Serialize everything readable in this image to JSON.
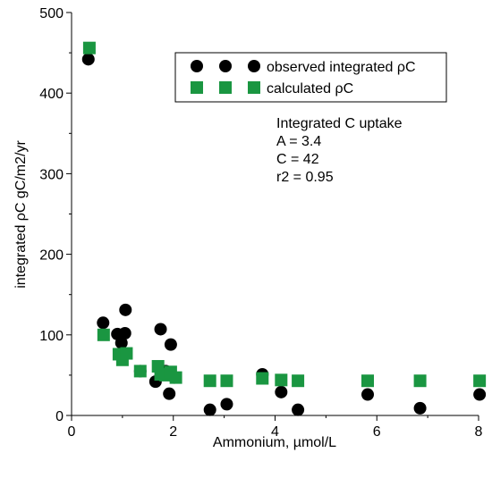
{
  "chart_data": {
    "type": "scatter",
    "title": "",
    "xlabel": "Ammonium, µmol/L",
    "ylabel": "integrated ρC gC/m2/yr",
    "xlim": [
      0,
      8
    ],
    "ylim": [
      0,
      500
    ],
    "xticks": [
      "0",
      "2",
      "4",
      "6",
      "8"
    ],
    "yticks": [
      "0",
      "100",
      "200",
      "300",
      "400",
      "500"
    ],
    "grid": false,
    "legend_position": "top-right",
    "series": [
      {
        "name": "observed integrated ρC",
        "marker": "circle",
        "color": "#000000",
        "points": [
          {
            "x": 0.33,
            "y": 442
          },
          {
            "x": 0.62,
            "y": 115
          },
          {
            "x": 0.9,
            "y": 101
          },
          {
            "x": 0.98,
            "y": 90
          },
          {
            "x": 1.05,
            "y": 102
          },
          {
            "x": 1.06,
            "y": 131
          },
          {
            "x": 1.35,
            "y": 55
          },
          {
            "x": 1.65,
            "y": 42
          },
          {
            "x": 1.75,
            "y": 107
          },
          {
            "x": 1.85,
            "y": 55
          },
          {
            "x": 1.95,
            "y": 88
          },
          {
            "x": 1.92,
            "y": 27
          },
          {
            "x": 2.02,
            "y": 47
          },
          {
            "x": 2.72,
            "y": 7
          },
          {
            "x": 3.05,
            "y": 14
          },
          {
            "x": 3.75,
            "y": 51
          },
          {
            "x": 4.12,
            "y": 29
          },
          {
            "x": 4.45,
            "y": 7
          },
          {
            "x": 5.82,
            "y": 26
          },
          {
            "x": 6.85,
            "y": 9
          },
          {
            "x": 8.02,
            "y": 26
          }
        ]
      },
      {
        "name": "calculated ρC",
        "marker": "square",
        "color": "#1a9641",
        "points": [
          {
            "x": 0.35,
            "y": 456
          },
          {
            "x": 0.63,
            "y": 100
          },
          {
            "x": 0.93,
            "y": 76
          },
          {
            "x": 1.0,
            "y": 69
          },
          {
            "x": 1.08,
            "y": 77
          },
          {
            "x": 1.35,
            "y": 55
          },
          {
            "x": 1.7,
            "y": 61
          },
          {
            "x": 1.75,
            "y": 51
          },
          {
            "x": 1.85,
            "y": 50
          },
          {
            "x": 1.95,
            "y": 54
          },
          {
            "x": 2.05,
            "y": 47
          },
          {
            "x": 2.72,
            "y": 43
          },
          {
            "x": 3.05,
            "y": 43
          },
          {
            "x": 3.75,
            "y": 46
          },
          {
            "x": 4.12,
            "y": 44
          },
          {
            "x": 4.45,
            "y": 43
          },
          {
            "x": 5.82,
            "y": 43
          },
          {
            "x": 6.85,
            "y": 43
          },
          {
            "x": 8.02,
            "y": 43
          }
        ]
      }
    ],
    "annotation": {
      "lines": [
        "Integrated C uptake",
        "A = 3.4",
        "C = 42",
        "r2 = 0.95"
      ]
    }
  }
}
